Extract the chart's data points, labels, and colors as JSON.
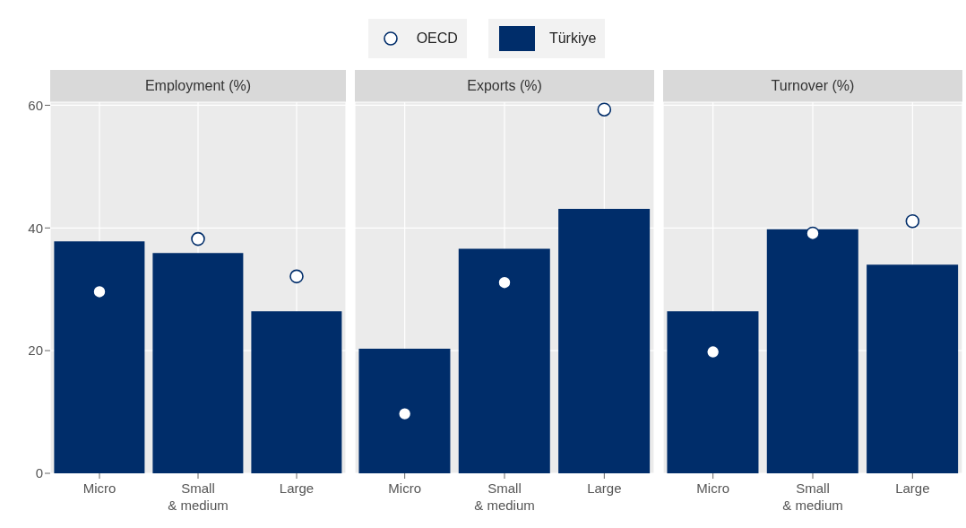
{
  "chart_data": [
    {
      "type": "bar",
      "title": "Employment (%)",
      "categories": [
        "Micro",
        "Small\n& medium",
        "Large"
      ],
      "series": [
        {
          "name": "OECD",
          "type": "scatter",
          "color": "#002d6a",
          "values": [
            29.6,
            38.2,
            32.1
          ]
        },
        {
          "name": "Türkiye",
          "color": "#002d6a",
          "values": [
            37.8,
            35.9,
            26.4
          ]
        }
      ],
      "ylim": [
        0,
        60.5
      ],
      "yticks": [
        0,
        20,
        40,
        60
      ],
      "grid": true,
      "legend": "top",
      "marker": "circle"
    },
    {
      "type": "bar",
      "title": "Exports (%)",
      "categories": [
        "Micro",
        "Small\n& medium",
        "Large"
      ],
      "series": [
        {
          "type": "scatter",
          "color": "#002d6a",
          "values": [
            9.7,
            31.1,
            59.3
          ]
        },
        {
          "color": "#002d6a",
          "values": [
            20.3,
            36.6,
            43.1
          ]
        }
      ],
      "ylim": [
        0,
        60.5
      ],
      "yticks": [
        0,
        20,
        40,
        60
      ],
      "grid": true,
      "tick_labels": "x",
      "marker": "circle"
    },
    {
      "type": "bar",
      "title": "Turnover (%)",
      "categories": [
        "Micro",
        "Small\n& medium",
        "Large"
      ],
      "series": [
        {
          "type": "scatter",
          "color": "#002d6a",
          "values": [
            19.8,
            39.1,
            41.1
          ]
        },
        {
          "color": "#002d6a",
          "values": [
            26.4,
            39.8,
            34.0
          ]
        }
      ],
      "ylim": [
        0,
        60.5
      ],
      "yticks": [
        0,
        20,
        40,
        60
      ],
      "grid": true,
      "tick_labels": "x",
      "marker": "circle"
    }
  ]
}
